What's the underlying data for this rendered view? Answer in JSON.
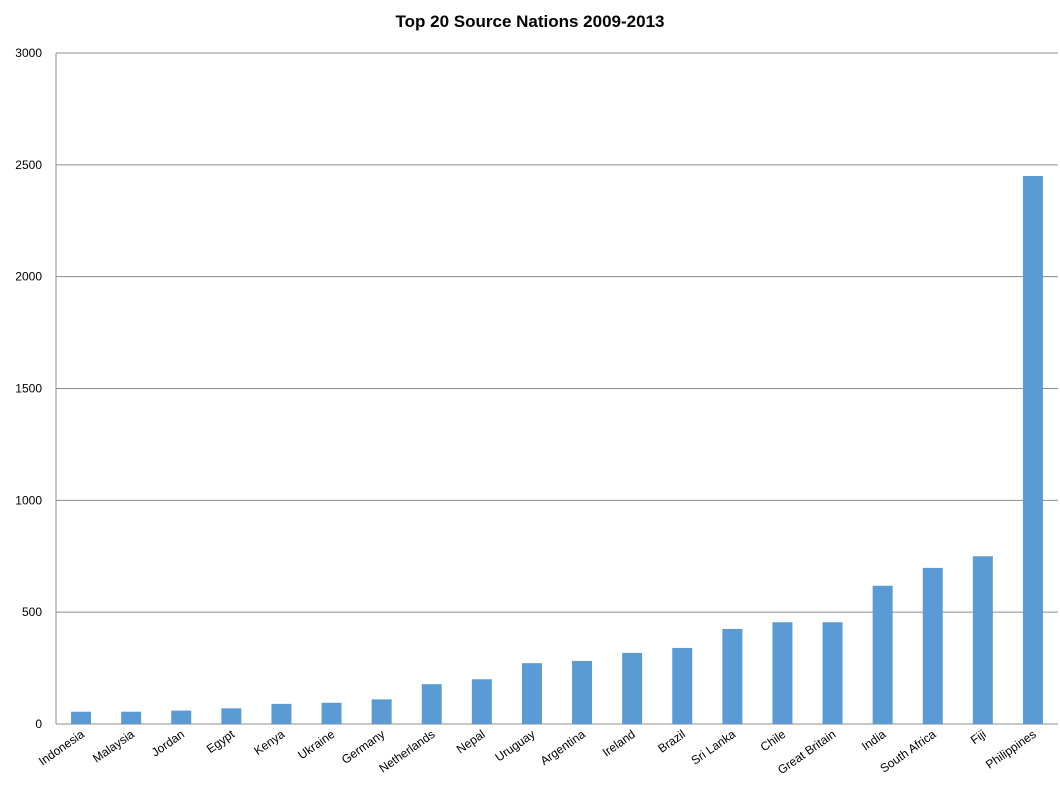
{
  "chart_data": {
    "type": "bar",
    "title": "Top 20 Source Nations 2009-2013",
    "xlabel": "",
    "ylabel": "",
    "ylim": [
      0,
      3000
    ],
    "yticks": [
      0,
      500,
      1000,
      1500,
      2000,
      2500,
      3000
    ],
    "grid": true,
    "legend": "none",
    "bar_color": "#5b9bd5",
    "categories": [
      "Indonesia",
      "Malaysia",
      "Jordan",
      "Egypt",
      "Kenya",
      "Ukraine",
      "Germany",
      "Netherlands",
      "Nepal",
      "Uruguay",
      "Argentina",
      "Ireland",
      "Brazil",
      "Sri Lanka",
      "Chile",
      "Great Britain",
      "India",
      "South Africa",
      "Fiji",
      "Philippines"
    ],
    "values": [
      55,
      55,
      60,
      70,
      90,
      95,
      110,
      178,
      200,
      272,
      282,
      318,
      340,
      425,
      455,
      455,
      618,
      698,
      750,
      2450
    ]
  }
}
